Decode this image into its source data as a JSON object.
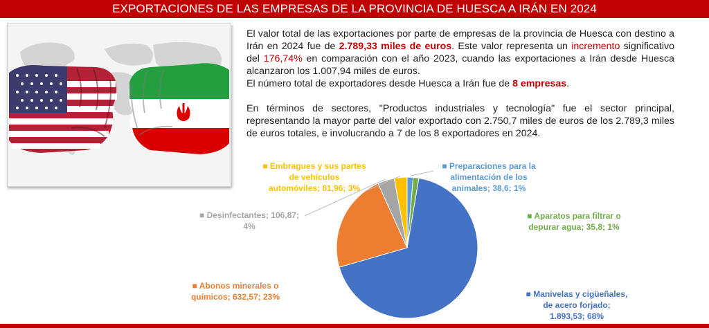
{
  "header": {
    "title": "EXPORTACIONES DE LAS EMPRESAS DE LA PROVINCIA DE HUESCA A IRÁN EN 2024"
  },
  "image": {
    "description_icon": "fists-usa-iran-flags-image"
  },
  "text": {
    "p1_a": "El valor total de las exportaciones por parte de empresas de la provincia de Huesca con destino a Irán en 2024 fue de ",
    "p1_value": "2.789,33 miles de euros",
    "p1_b": ". Este valor representa un ",
    "p1_incremento": "incremento",
    "p1_c": " significativo del ",
    "p1_pct": "176,74%",
    "p1_d": " en comparación con el año 2023, cuando las exportaciones a Irán desde Huesca alcanzaron los 1.007,94 miles de euros.",
    "p2_a": "El número total de exportadores desde Huesca a Irán fue de ",
    "p2_value": "8 empresas",
    "p2_b": ".",
    "p3": "En términos de sectores, \"Productos industriales y tecnología\" fue el sector principal, representando la mayor parte del valor exportado con 2.750,7 miles de euros de los 2.789,3 miles de euros totales, e involucrando a 7 de los 8 exportadores en 2024."
  },
  "chart_data": {
    "type": "pie",
    "title": "",
    "start_angle_deg": 0,
    "direction": "clockwise",
    "slices": [
      {
        "name": "Preparaciones para la alimentación de los animales",
        "value": 38.6,
        "percent": "1%",
        "color": "#5b9bd5",
        "label_lines": [
          "Preparaciones para la",
          "alimentación de los",
          "animales; 38,6; 1%"
        ]
      },
      {
        "name": "Aparatos para filtrar o depurar agua",
        "value": 35.8,
        "percent": "1%",
        "color": "#70ad47",
        "label_lines": [
          "Aparatos para filtrar o",
          "depurar agua; 35,8; 1%"
        ]
      },
      {
        "name": "Manivelas y cigüeñales, de acero forjado",
        "value": 1893.53,
        "percent": "68%",
        "color": "#4472c4",
        "label_lines": [
          "Manivelas y cigüeñales,",
          "de acero forjado;",
          "1.893,53; 68%"
        ]
      },
      {
        "name": "Abonos minerales o químicos",
        "value": 632.57,
        "percent": "23%",
        "color": "#ed7d31",
        "label_lines": [
          "Abonos minerales o",
          "químicos; 632,57; 23%"
        ]
      },
      {
        "name": "Desinfectantes",
        "value": 106.87,
        "percent": "4%",
        "color": "#a5a5a5",
        "label_lines": [
          "Desinfectantes; 106,87;",
          "4%"
        ]
      },
      {
        "name": "Embragues y sus partes de vehículos automóviles",
        "value": 81.96,
        "percent": "3%",
        "color": "#ffc000",
        "label_lines": [
          "Embragues y sus partes",
          "de vehículos",
          "automóviles; 81,96; 3%"
        ]
      }
    ]
  }
}
